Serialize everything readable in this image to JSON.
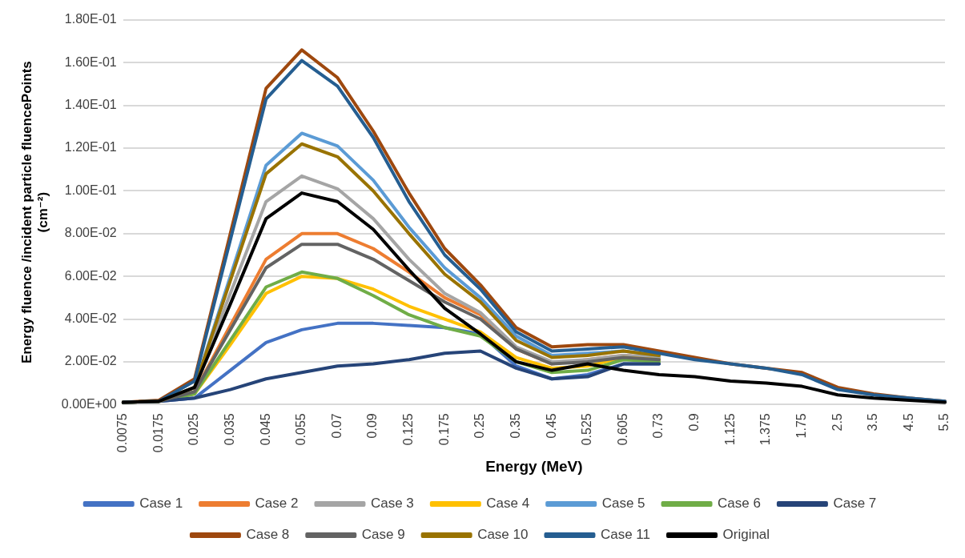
{
  "chart_data": {
    "type": "line",
    "xlabel": "Energy (MeV)",
    "ylabel": "Energy fluence /incident particle fluencePoints (cm⁻²)",
    "categories": [
      "0.0075",
      "0.0175",
      "0.025",
      "0.035",
      "0.045",
      "0.055",
      "0.07",
      "0.09",
      "0.125",
      "0.175",
      "0.25",
      "0.35",
      "0.45",
      "0.525",
      "0.605",
      "0.73",
      "0.9",
      "1.125",
      "1.375",
      "1.75",
      "2.5",
      "3.5",
      "4.5",
      "5.5"
    ],
    "ylim": [
      0,
      0.18
    ],
    "yticks": [
      {
        "value": 0,
        "label": "0.00E+00"
      },
      {
        "value": 0.02,
        "label": "2.00E-02"
      },
      {
        "value": 0.04,
        "label": "4.00E-02"
      },
      {
        "value": 0.06,
        "label": "6.00E-02"
      },
      {
        "value": 0.08,
        "label": "8.00E-02"
      },
      {
        "value": 0.1,
        "label": "1.00E-01"
      },
      {
        "value": 0.12,
        "label": "1.20E-01"
      },
      {
        "value": 0.14,
        "label": "1.40E-01"
      },
      {
        "value": 0.16,
        "label": "1.60E-01"
      },
      {
        "value": 0.18,
        "label": "1.80E-01"
      }
    ],
    "grid": "y",
    "legend": "bottom",
    "marker": "none",
    "line_style": "solid",
    "series": [
      {
        "name": "Case 1",
        "color": "#4472c4",
        "values": [
          0.001,
          0.0015,
          0.003,
          0.016,
          0.029,
          0.035,
          0.038,
          0.038,
          0.037,
          0.036,
          0.033,
          0.018,
          0.012,
          0.014,
          0.019,
          0.019,
          null,
          null,
          null,
          null,
          null,
          null,
          null,
          null
        ]
      },
      {
        "name": "Case 2",
        "color": "#ed7d31",
        "values": [
          0.001,
          0.0015,
          0.006,
          0.037,
          0.068,
          0.08,
          0.08,
          0.073,
          0.062,
          0.05,
          0.042,
          0.026,
          0.019,
          0.021,
          0.023,
          0.022,
          null,
          null,
          null,
          null,
          null,
          null,
          null,
          null
        ]
      },
      {
        "name": "Case 3",
        "color": "#a5a5a5",
        "values": [
          0.001,
          0.0015,
          0.008,
          0.052,
          0.095,
          0.107,
          0.101,
          0.087,
          0.068,
          0.052,
          0.043,
          0.027,
          0.02,
          0.021,
          0.023,
          0.022,
          null,
          null,
          null,
          null,
          null,
          null,
          null,
          null
        ]
      },
      {
        "name": "Case 4",
        "color": "#ffc000",
        "values": [
          0.001,
          0.0015,
          0.005,
          0.028,
          0.052,
          0.06,
          0.059,
          0.054,
          0.046,
          0.04,
          0.034,
          0.022,
          0.017,
          0.018,
          0.022,
          0.021,
          null,
          null,
          null,
          null,
          null,
          null,
          null,
          null
        ]
      },
      {
        "name": "Case 5",
        "color": "#5b9bd5",
        "values": [
          0.001,
          0.0015,
          0.008,
          0.06,
          0.112,
          0.127,
          0.121,
          0.105,
          0.083,
          0.064,
          0.05,
          0.032,
          0.023,
          0.024,
          0.025,
          0.023,
          null,
          null,
          null,
          null,
          null,
          null,
          null,
          null
        ]
      },
      {
        "name": "Case 6",
        "color": "#70ad47",
        "values": [
          0.001,
          0.0015,
          0.005,
          0.03,
          0.055,
          0.062,
          0.059,
          0.051,
          0.042,
          0.036,
          0.032,
          0.02,
          0.015,
          0.016,
          0.021,
          0.02,
          null,
          null,
          null,
          null,
          null,
          null,
          null,
          null
        ]
      },
      {
        "name": "Case 7",
        "color": "#264478",
        "values": [
          0.001,
          0.0015,
          0.003,
          0.007,
          0.012,
          0.015,
          0.018,
          0.019,
          0.021,
          0.024,
          0.025,
          0.017,
          0.012,
          0.013,
          0.019,
          0.019,
          null,
          null,
          null,
          null,
          null,
          null,
          null,
          null
        ]
      },
      {
        "name": "Case 8",
        "color": "#9e480e",
        "values": [
          0.001,
          0.002,
          0.012,
          0.08,
          0.148,
          0.166,
          0.153,
          0.128,
          0.099,
          0.073,
          0.056,
          0.036,
          0.027,
          0.028,
          0.028,
          0.025,
          0.022,
          0.019,
          0.017,
          0.015,
          0.008,
          0.005,
          0.003,
          0.0015
        ]
      },
      {
        "name": "Case 9",
        "color": "#636363",
        "values": [
          0.001,
          0.0015,
          0.006,
          0.035,
          0.064,
          0.075,
          0.075,
          0.068,
          0.058,
          0.048,
          0.04,
          0.026,
          0.019,
          0.02,
          0.022,
          0.021,
          null,
          null,
          null,
          null,
          null,
          null,
          null,
          null
        ]
      },
      {
        "name": "Case 10",
        "color": "#997300",
        "values": [
          0.001,
          0.0015,
          0.008,
          0.058,
          0.108,
          0.122,
          0.116,
          0.1,
          0.08,
          0.061,
          0.048,
          0.03,
          0.022,
          0.023,
          0.025,
          0.023,
          null,
          null,
          null,
          null,
          null,
          null,
          null,
          null
        ]
      },
      {
        "name": "Case 11",
        "color": "#255e91",
        "values": [
          0.001,
          0.0015,
          0.011,
          0.077,
          0.143,
          0.161,
          0.149,
          0.125,
          0.095,
          0.07,
          0.054,
          0.034,
          0.025,
          0.026,
          0.027,
          0.024,
          0.021,
          0.019,
          0.017,
          0.014,
          0.007,
          0.0045,
          0.003,
          0.0015
        ]
      },
      {
        "name": "Original",
        "color": "#000000",
        "values": [
          0.001,
          0.0015,
          0.008,
          0.047,
          0.087,
          0.099,
          0.095,
          0.082,
          0.063,
          0.045,
          0.033,
          0.02,
          0.016,
          0.019,
          0.016,
          0.014,
          0.013,
          0.011,
          0.01,
          0.0085,
          0.0045,
          0.003,
          0.002,
          0.001
        ]
      }
    ]
  }
}
